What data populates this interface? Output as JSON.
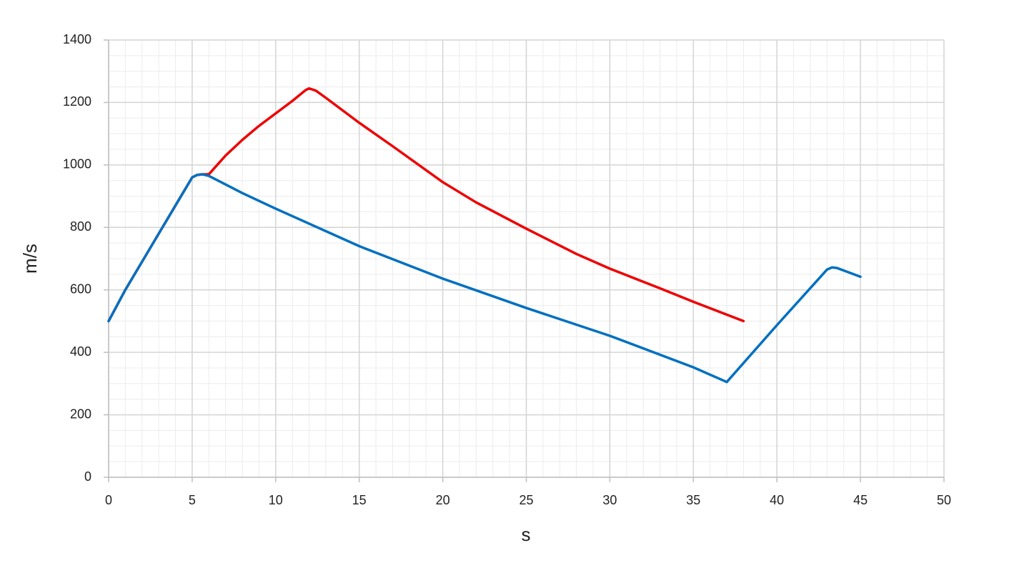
{
  "chart_data": {
    "type": "line",
    "x_label": "s",
    "y_label": "m/s",
    "xlim": [
      0,
      50
    ],
    "xticks": [
      0,
      5,
      10,
      15,
      20,
      25,
      30,
      35,
      40,
      45,
      50
    ],
    "ylim": [
      0,
      1400
    ],
    "yticks": [
      0,
      200,
      400,
      600,
      800,
      1000,
      1200,
      1400
    ],
    "grid": true,
    "minor_grid": true,
    "series": [
      {
        "color": "#ee0000",
        "x": [
          0,
          1,
          2,
          3,
          4,
          5,
          5.3,
          5.6,
          6,
          7,
          8,
          9,
          10,
          11,
          11.8,
          12,
          12.4,
          13,
          14,
          15,
          17,
          20,
          22,
          25,
          28,
          30,
          33,
          35,
          38
        ],
        "values": [
          500,
          600,
          690,
          780,
          870,
          960,
          968,
          970,
          970,
          1030,
          1080,
          1125,
          1165,
          1205,
          1240,
          1245,
          1238,
          1215,
          1175,
          1135,
          1060,
          945,
          880,
          796,
          715,
          668,
          605,
          562,
          500
        ]
      },
      {
        "color": "#0070c0",
        "x": [
          0,
          1,
          2,
          3,
          4,
          5,
          5.3,
          5.6,
          6,
          8,
          10,
          15,
          20,
          25,
          30,
          35,
          37,
          40,
          43,
          43.3,
          43.6,
          45
        ],
        "values": [
          500,
          600,
          690,
          780,
          870,
          960,
          968,
          970,
          965,
          910,
          860,
          740,
          636,
          542,
          453,
          352,
          305,
          487,
          665,
          672,
          670,
          642
        ]
      }
    ]
  }
}
